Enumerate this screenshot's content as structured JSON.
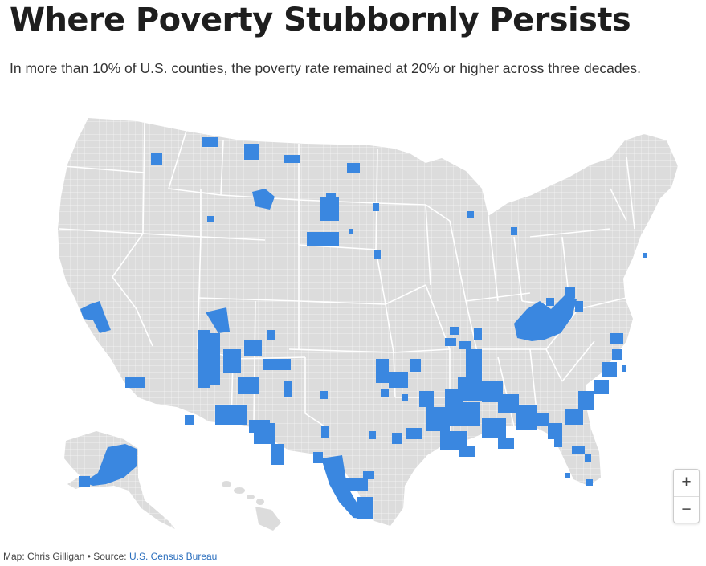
{
  "title": "Where Poverty Stubbornly Persists",
  "subtitle": "In more than 10% of U.S. counties, the poverty rate remained at 20% or higher across three decades.",
  "map": {
    "region": "United States counties",
    "colors": {
      "land": "#dcdcdc",
      "border": "#ffffff",
      "highlight": "#3a87e0"
    }
  },
  "controls": {
    "zoom_in": "+",
    "zoom_out": "−"
  },
  "credit": {
    "map_by": "Map: Chris Gilligan",
    "separator": " • ",
    "source_label": "Source: ",
    "source_link": "U.S. Census Bureau"
  }
}
